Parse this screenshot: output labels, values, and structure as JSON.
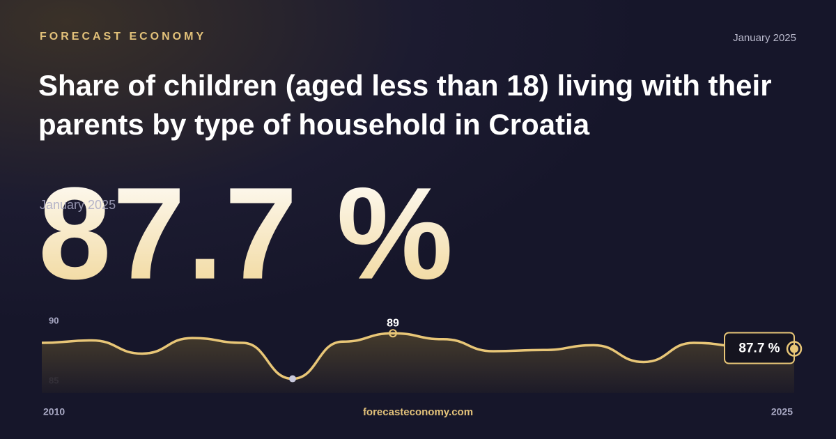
{
  "header": {
    "brand": "FORECAST ECONOMY",
    "date": "January 2025",
    "title": "Share of children (aged less than 18) living with their parents by type of household in Croatia"
  },
  "headline": {
    "label": "87.7 %",
    "date": "January 2025"
  },
  "footer": {
    "site": "forecasteconomy.com"
  },
  "chart_data": {
    "type": "line",
    "x": [
      2010,
      2011,
      2012,
      2013,
      2014,
      2015,
      2016,
      2017,
      2018,
      2019,
      2020,
      2021,
      2022,
      2023,
      2024,
      2025
    ],
    "xlim": [
      2010,
      2025
    ],
    "xticks": [
      2010,
      2025
    ],
    "series": [
      {
        "name": "Share of children",
        "color": "#e8c677",
        "values": [
          88.2,
          88.4,
          87.3,
          88.6,
          88.2,
          85.2,
          88.3,
          89.0,
          88.5,
          87.5,
          87.6,
          88.0,
          86.6,
          88.2,
          87.9,
          87.7
        ],
        "value_labels": [
          null,
          null,
          null,
          null,
          null,
          null,
          null,
          "89",
          null,
          null,
          null,
          null,
          null,
          null,
          null,
          "87.7 %"
        ]
      }
    ],
    "ylim": [
      84.5,
      90.5
    ],
    "yticks": [
      85,
      90
    ],
    "grid": false
  }
}
